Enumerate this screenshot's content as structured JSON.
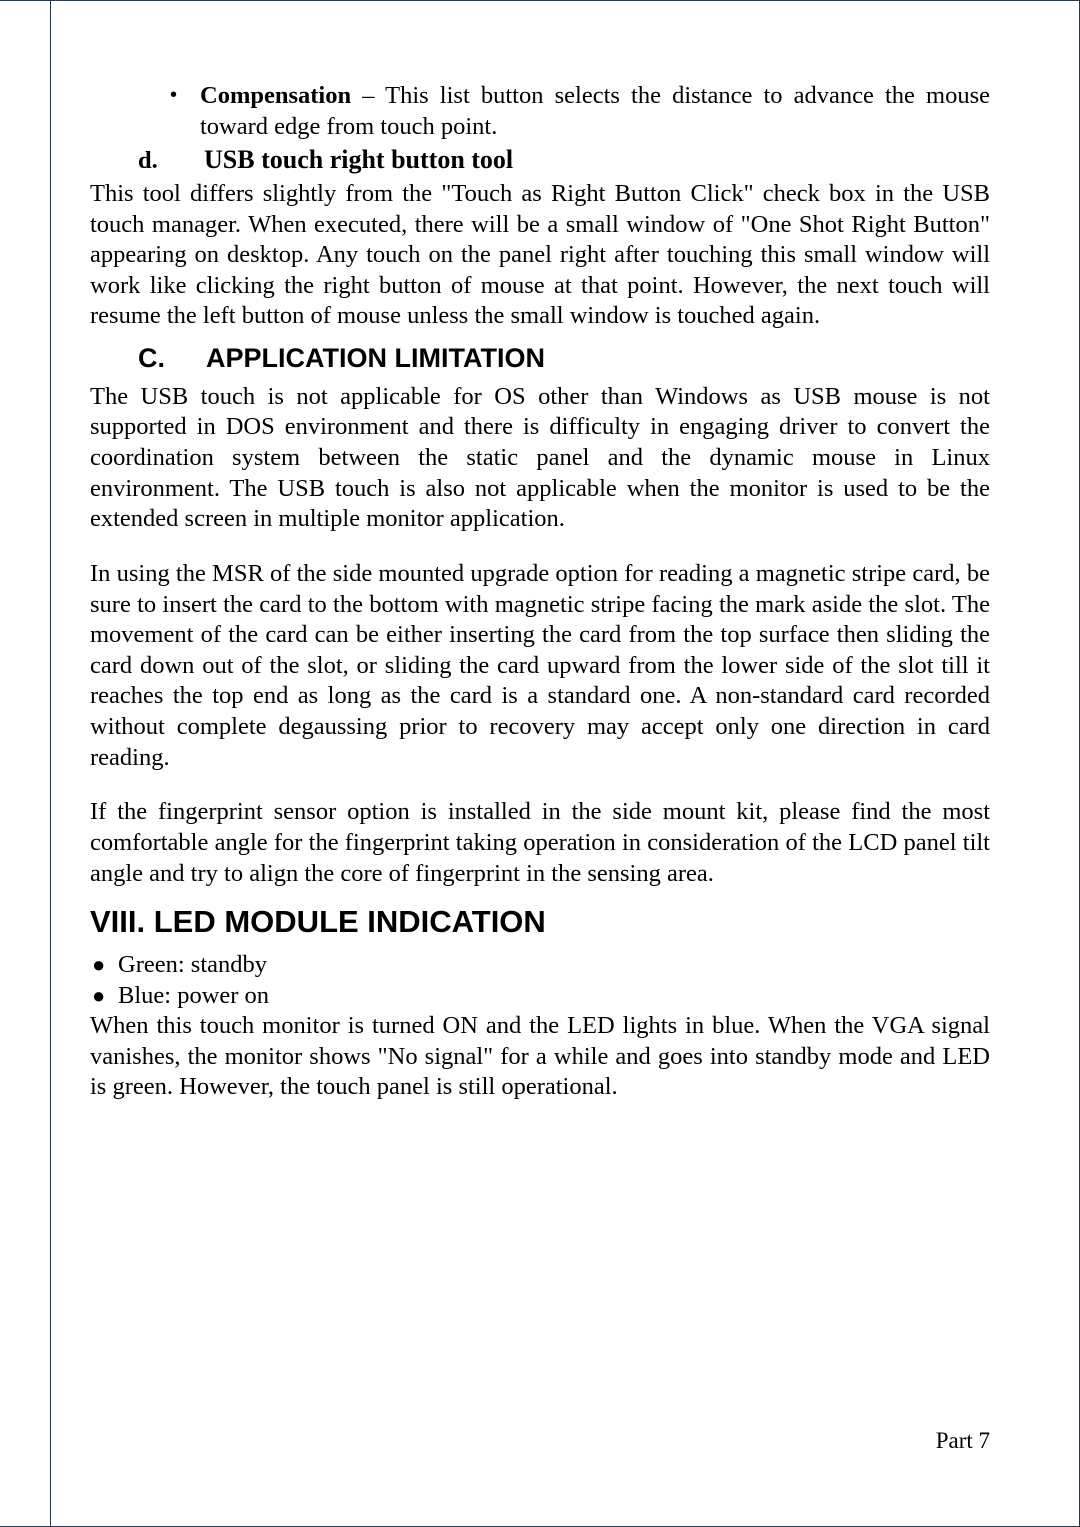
{
  "bullet": {
    "dot": "•",
    "compensation_label": "Compensation",
    "compensation_text": " – This list button selects the distance to advance the mouse toward edge from touch point."
  },
  "sub_d": {
    "label": "d.",
    "title": "USB touch right button tool"
  },
  "para_d": "This tool differs slightly from the \"Touch as Right Button Click\" check box in the USB touch manager. When executed, there will be a small window of \"One Shot Right Button\" appearing on desktop. Any touch on the panel right after touching this small window will work like clicking the right button of mouse at that point. However, the next touch will resume the left button of mouse unless the small window is touched again.",
  "section_c": {
    "label": "C.",
    "title": "APPLICATION LIMITATION"
  },
  "para_c1": "The USB touch is not applicable for OS other than Windows as USB mouse is not supported in DOS environment and there is difficulty in engaging driver to convert the coordination system between the static panel and the dynamic mouse in Linux environment. The USB touch is also not applicable when the monitor is used to be the extended screen in multiple monitor application.",
  "para_c2": "In using the MSR of the side mounted upgrade option for reading a magnetic stripe card, be sure to insert the card to the bottom with magnetic stripe facing the mark aside the slot. The movement of the card can be either inserting the card from the top surface then sliding the card down out of the slot, or sliding the card upward from the lower side of the slot till it reaches the top end as long as the card is a standard one. A non-standard card recorded without complete degaussing prior to recovery may accept only one direction in card reading.",
  "para_c3": "If the fingerprint sensor option is installed in the side mount kit, please find the most comfortable angle for the fingerprint taking operation in consideration of the LCD panel tilt angle and try to align the core of fingerprint in the sensing area.",
  "heading_viii": "VIII.    LED MODULE INDICATION",
  "led_items": {
    "bullet": "●",
    "green": "Green: standby",
    "blue": "Blue: power on"
  },
  "para_led": "When this touch monitor is turned ON and the LED lights in blue. When the VGA signal vanishes, the monitor shows \"No signal\" for a while and goes into standby mode and LED is green. However, the touch panel is still operational.",
  "page_number": "Part 7"
}
